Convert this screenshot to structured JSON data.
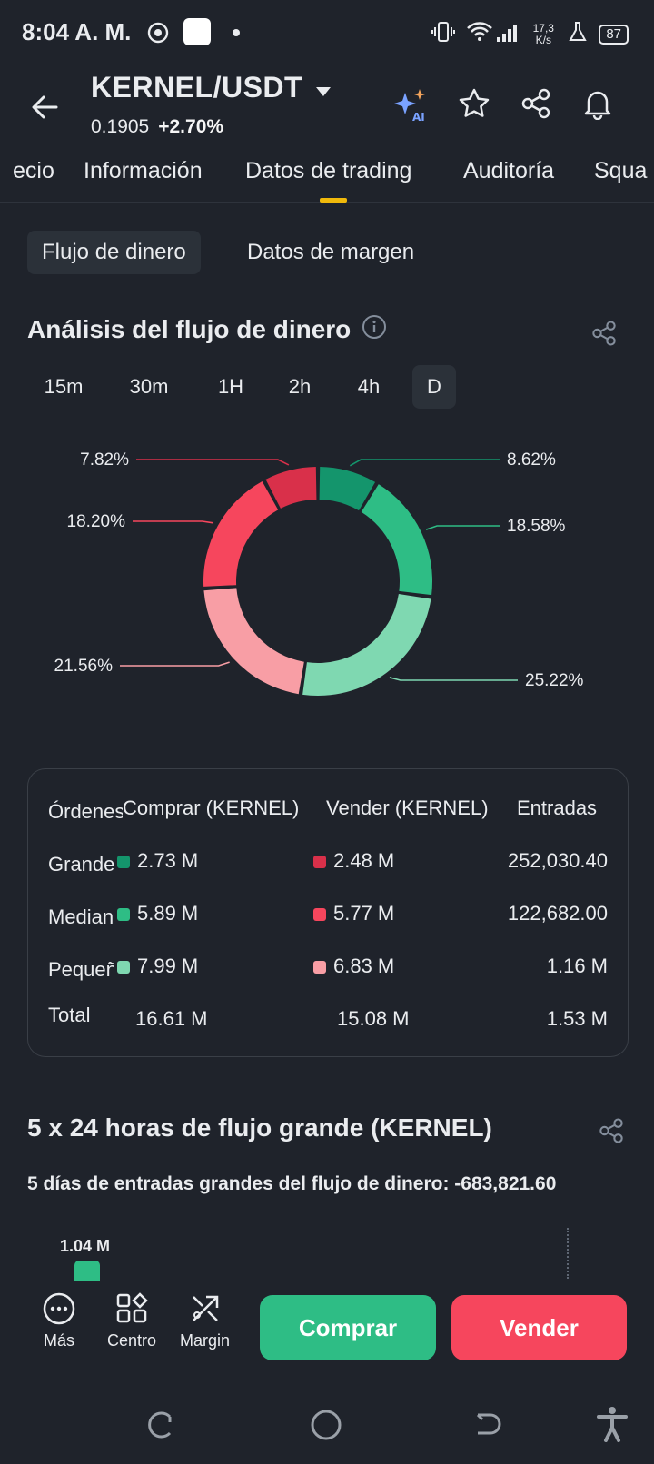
{
  "status_bar": {
    "time": "8:04 A. M.",
    "net_speed": "17,3 K/s",
    "battery": "87"
  },
  "header": {
    "pair": "KERNEL/USDT",
    "price": "0.1905",
    "change": "+2.70%"
  },
  "tabs": [
    {
      "label": "ecio"
    },
    {
      "label": "Información"
    },
    {
      "label": "Datos de trading"
    },
    {
      "label": "Auditoría"
    },
    {
      "label": "Squa"
    }
  ],
  "subtabs": {
    "money_flow": "Flujo de dinero",
    "margin_data": "Datos de margen"
  },
  "analysis": {
    "title": "Análisis del flujo de dinero",
    "periods": [
      "15m",
      "30m",
      "1H",
      "2h",
      "4h",
      "D"
    ]
  },
  "chart_data": {
    "type": "pie",
    "categories": [
      "Compra grande",
      "Compra mediana",
      "Compra pequeña",
      "Venta pequeña",
      "Venta mediana",
      "Venta grande"
    ],
    "values": [
      8.62,
      18.58,
      25.22,
      21.56,
      18.2,
      7.82
    ],
    "labels": [
      "8.62%",
      "18.58%",
      "25.22%",
      "21.56%",
      "18.20%",
      "7.82%"
    ],
    "colors": [
      "#14956c",
      "#2ebd85",
      "#7fd8b1",
      "#f89ea5",
      "#f6465d",
      "#d9304a"
    ]
  },
  "flow_table": {
    "headers": [
      "Órdenes",
      "Comprar (KERNEL)",
      "Vender (KERNEL)",
      "Entradas"
    ],
    "rows": [
      {
        "label": "Grande",
        "buy": "2.73 M",
        "sell": "2.48 M",
        "inflow": "252,030.40",
        "buy_color": "#14956c",
        "sell_color": "#d9304a"
      },
      {
        "label": "Mediana",
        "buy": "5.89 M",
        "sell": "5.77 M",
        "inflow": "122,682.00",
        "buy_color": "#2ebd85",
        "sell_color": "#f6465d"
      },
      {
        "label": "Pequeña",
        "buy": "7.99 M",
        "sell": "6.83 M",
        "inflow": "1.16 M",
        "buy_color": "#7fd8b1",
        "sell_color": "#f89ea5"
      }
    ],
    "total": {
      "label": "Total",
      "buy": "16.61 M",
      "sell": "15.08 M",
      "inflow": "1.53 M"
    }
  },
  "large_flow": {
    "title": "5 x 24 horas de flujo grande (KERNEL)",
    "subtitle": "5 días de entradas grandes del flujo de dinero: -683,821.60",
    "first_bar_label": "1.04 M"
  },
  "bottom_nav": {
    "more": "Más",
    "center": "Centro",
    "margin": "Margin",
    "buy": "Comprar",
    "sell": "Vender"
  }
}
